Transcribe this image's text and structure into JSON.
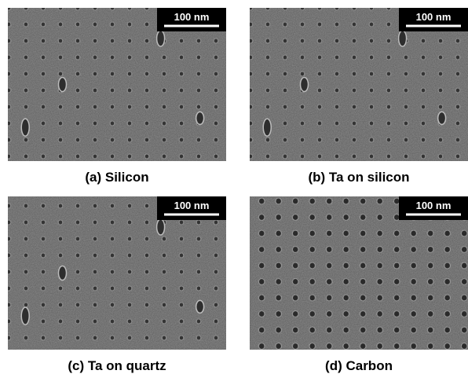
{
  "panels": [
    {
      "caption": "(a) Silicon",
      "scale_bar": "100 nm"
    },
    {
      "caption": "(b) Ta on silicon",
      "scale_bar": "100 nm"
    },
    {
      "caption": "(c) Ta on quartz",
      "scale_bar": "100 nm"
    },
    {
      "caption": "(d) Carbon",
      "scale_bar": "100 nm"
    }
  ]
}
